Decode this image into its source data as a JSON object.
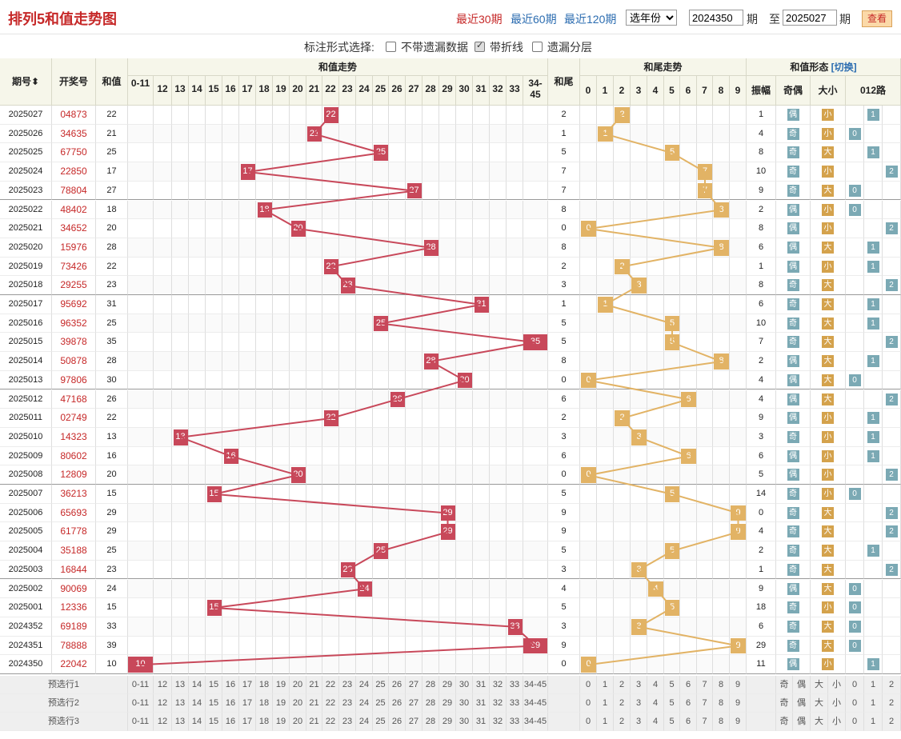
{
  "title": "排列5和值走势图",
  "links": [
    "最近30期",
    "最近60期",
    "最近120期"
  ],
  "year_select": "选年份",
  "period_from": "2024350",
  "period_to": "2025027",
  "period_label": "期",
  "to_label": "至",
  "query_button": "查看",
  "mark_label": "标注形式选择:",
  "mark_options": [
    {
      "label": "不带遗漏数据",
      "checked": false
    },
    {
      "label": "带折线",
      "checked": true
    },
    {
      "label": "遗漏分层",
      "checked": false
    }
  ],
  "headers": {
    "issue": "期号",
    "draw": "开奖号",
    "sum": "和值",
    "sum_trend": "和值走势",
    "tail": "和尾",
    "tail_trend": "和尾走势",
    "form": "和值形态",
    "switch": "[切换]",
    "amplitude": "振幅",
    "oddeven": "奇偶",
    "bigsmall": "大小",
    "route": "012路"
  },
  "sum_cols": [
    "0-11",
    "12",
    "13",
    "14",
    "15",
    "16",
    "17",
    "18",
    "19",
    "20",
    "21",
    "22",
    "23",
    "24",
    "25",
    "26",
    "27",
    "28",
    "29",
    "30",
    "31",
    "32",
    "33",
    "34-45"
  ],
  "tail_cols": [
    "0",
    "1",
    "2",
    "3",
    "4",
    "5",
    "6",
    "7",
    "8",
    "9"
  ],
  "route_cols": [
    "0",
    "1",
    "2"
  ],
  "tags": {
    "odd": "奇",
    "even": "偶",
    "big": "大",
    "small": "小"
  },
  "rows": [
    {
      "issue": "2025027",
      "draw": "04873",
      "sum": 22,
      "tail": 2,
      "amp": 1,
      "oe": "偶",
      "bs": "小",
      "route": 1
    },
    {
      "issue": "2025026",
      "draw": "34635",
      "sum": 21,
      "tail": 1,
      "amp": 4,
      "oe": "奇",
      "bs": "小",
      "route": 0
    },
    {
      "issue": "2025025",
      "draw": "67750",
      "sum": 25,
      "tail": 5,
      "amp": 8,
      "oe": "奇",
      "bs": "大",
      "route": 1
    },
    {
      "issue": "2025024",
      "draw": "22850",
      "sum": 17,
      "tail": 7,
      "amp": 10,
      "oe": "奇",
      "bs": "小",
      "route": 2
    },
    {
      "issue": "2025023",
      "draw": "78804",
      "sum": 27,
      "tail": 7,
      "amp": 9,
      "oe": "奇",
      "bs": "大",
      "route": 0
    },
    {
      "issue": "2025022",
      "draw": "48402",
      "sum": 18,
      "tail": 8,
      "amp": 2,
      "oe": "偶",
      "bs": "小",
      "route": 0
    },
    {
      "issue": "2025021",
      "draw": "34652",
      "sum": 20,
      "tail": 0,
      "amp": 8,
      "oe": "偶",
      "bs": "小",
      "route": 2
    },
    {
      "issue": "2025020",
      "draw": "15976",
      "sum": 28,
      "tail": 8,
      "amp": 6,
      "oe": "偶",
      "bs": "大",
      "route": 1
    },
    {
      "issue": "2025019",
      "draw": "73426",
      "sum": 22,
      "tail": 2,
      "amp": 1,
      "oe": "偶",
      "bs": "小",
      "route": 1
    },
    {
      "issue": "2025018",
      "draw": "29255",
      "sum": 23,
      "tail": 3,
      "amp": 8,
      "oe": "奇",
      "bs": "大",
      "route": 2
    },
    {
      "issue": "2025017",
      "draw": "95692",
      "sum": 31,
      "tail": 1,
      "amp": 6,
      "oe": "奇",
      "bs": "大",
      "route": 1
    },
    {
      "issue": "2025016",
      "draw": "96352",
      "sum": 25,
      "tail": 5,
      "amp": 10,
      "oe": "奇",
      "bs": "大",
      "route": 1
    },
    {
      "issue": "2025015",
      "draw": "39878",
      "sum": 35,
      "tail": 5,
      "amp": 7,
      "oe": "奇",
      "bs": "大",
      "route": 2
    },
    {
      "issue": "2025014",
      "draw": "50878",
      "sum": 28,
      "tail": 8,
      "amp": 2,
      "oe": "偶",
      "bs": "大",
      "route": 1
    },
    {
      "issue": "2025013",
      "draw": "97806",
      "sum": 30,
      "tail": 0,
      "amp": 4,
      "oe": "偶",
      "bs": "大",
      "route": 0
    },
    {
      "issue": "2025012",
      "draw": "47168",
      "sum": 26,
      "tail": 6,
      "amp": 4,
      "oe": "偶",
      "bs": "大",
      "route": 2
    },
    {
      "issue": "2025011",
      "draw": "02749",
      "sum": 22,
      "tail": 2,
      "amp": 9,
      "oe": "偶",
      "bs": "小",
      "route": 1
    },
    {
      "issue": "2025010",
      "draw": "14323",
      "sum": 13,
      "tail": 3,
      "amp": 3,
      "oe": "奇",
      "bs": "小",
      "route": 1
    },
    {
      "issue": "2025009",
      "draw": "80602",
      "sum": 16,
      "tail": 6,
      "amp": 6,
      "oe": "偶",
      "bs": "小",
      "route": 1
    },
    {
      "issue": "2025008",
      "draw": "12809",
      "sum": 20,
      "tail": 0,
      "amp": 5,
      "oe": "偶",
      "bs": "小",
      "route": 2
    },
    {
      "issue": "2025007",
      "draw": "36213",
      "sum": 15,
      "tail": 5,
      "amp": 14,
      "oe": "奇",
      "bs": "小",
      "route": 0
    },
    {
      "issue": "2025006",
      "draw": "65693",
      "sum": 29,
      "tail": 9,
      "amp": 0,
      "oe": "奇",
      "bs": "大",
      "route": 2
    },
    {
      "issue": "2025005",
      "draw": "61778",
      "sum": 29,
      "tail": 9,
      "amp": 4,
      "oe": "奇",
      "bs": "大",
      "route": 2
    },
    {
      "issue": "2025004",
      "draw": "35188",
      "sum": 25,
      "tail": 5,
      "amp": 2,
      "oe": "奇",
      "bs": "大",
      "route": 1
    },
    {
      "issue": "2025003",
      "draw": "16844",
      "sum": 23,
      "tail": 3,
      "amp": 1,
      "oe": "奇",
      "bs": "大",
      "route": 2
    },
    {
      "issue": "2025002",
      "draw": "90069",
      "sum": 24,
      "tail": 4,
      "amp": 9,
      "oe": "偶",
      "bs": "大",
      "route": 0
    },
    {
      "issue": "2025001",
      "draw": "12336",
      "sum": 15,
      "tail": 5,
      "amp": 18,
      "oe": "奇",
      "bs": "小",
      "route": 0
    },
    {
      "issue": "2024352",
      "draw": "69189",
      "sum": 33,
      "tail": 3,
      "amp": 6,
      "oe": "奇",
      "bs": "大",
      "route": 0
    },
    {
      "issue": "2024351",
      "draw": "78888",
      "sum": 39,
      "tail": 9,
      "amp": 29,
      "oe": "奇",
      "bs": "大",
      "route": 0
    },
    {
      "issue": "2024350",
      "draw": "22042",
      "sum": 10,
      "tail": 0,
      "amp": 11,
      "oe": "偶",
      "bs": "小",
      "route": 1
    }
  ],
  "presel": [
    "预选行1",
    "预选行2",
    "预选行3"
  ],
  "presel_form": [
    "奇",
    "偶",
    "大",
    "小"
  ]
}
